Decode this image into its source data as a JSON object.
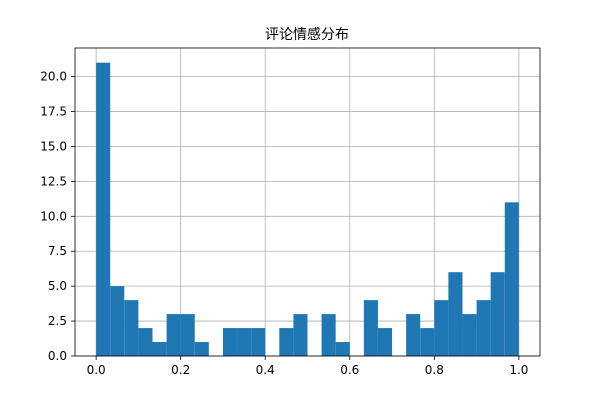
{
  "chart_data": {
    "type": "bar",
    "title": "评论情感分布",
    "xlabel": "",
    "ylabel": "",
    "xlim": [
      -0.05,
      1.05
    ],
    "ylim": [
      0,
      22.05
    ],
    "grid": true,
    "bar_color": "#1f77b4",
    "bin_width": 0.0333,
    "bins": [
      {
        "x0": 0.0,
        "count": 21
      },
      {
        "x0": 0.0333,
        "count": 5
      },
      {
        "x0": 0.0667,
        "count": 4
      },
      {
        "x0": 0.1,
        "count": 2
      },
      {
        "x0": 0.1333,
        "count": 1
      },
      {
        "x0": 0.1667,
        "count": 3
      },
      {
        "x0": 0.2,
        "count": 3
      },
      {
        "x0": 0.2333,
        "count": 1
      },
      {
        "x0": 0.2667,
        "count": 0
      },
      {
        "x0": 0.3,
        "count": 2
      },
      {
        "x0": 0.3333,
        "count": 2
      },
      {
        "x0": 0.3667,
        "count": 2
      },
      {
        "x0": 0.4,
        "count": 0
      },
      {
        "x0": 0.4333,
        "count": 2
      },
      {
        "x0": 0.4667,
        "count": 3
      },
      {
        "x0": 0.5,
        "count": 0
      },
      {
        "x0": 0.5333,
        "count": 3
      },
      {
        "x0": 0.5667,
        "count": 1
      },
      {
        "x0": 0.6,
        "count": 0
      },
      {
        "x0": 0.6333,
        "count": 4
      },
      {
        "x0": 0.6667,
        "count": 2
      },
      {
        "x0": 0.7,
        "count": 0
      },
      {
        "x0": 0.7333,
        "count": 3
      },
      {
        "x0": 0.7667,
        "count": 2
      },
      {
        "x0": 0.8,
        "count": 4
      },
      {
        "x0": 0.8333,
        "count": 6
      },
      {
        "x0": 0.8667,
        "count": 3
      },
      {
        "x0": 0.9,
        "count": 4
      },
      {
        "x0": 0.9333,
        "count": 6
      },
      {
        "x0": 0.9667,
        "count": 11
      }
    ],
    "x_ticks": [
      {
        "value": 0.0,
        "label": "0.0"
      },
      {
        "value": 0.2,
        "label": "0.2"
      },
      {
        "value": 0.4,
        "label": "0.4"
      },
      {
        "value": 0.6,
        "label": "0.6"
      },
      {
        "value": 0.8,
        "label": "0.8"
      },
      {
        "value": 1.0,
        "label": "1.0"
      }
    ],
    "y_ticks": [
      {
        "value": 0.0,
        "label": "0.0"
      },
      {
        "value": 2.5,
        "label": "2.5"
      },
      {
        "value": 5.0,
        "label": "5.0"
      },
      {
        "value": 7.5,
        "label": "7.5"
      },
      {
        "value": 10.0,
        "label": "10.0"
      },
      {
        "value": 12.5,
        "label": "12.5"
      },
      {
        "value": 15.0,
        "label": "15.0"
      },
      {
        "value": 17.5,
        "label": "17.5"
      },
      {
        "value": 20.0,
        "label": "20.0"
      }
    ]
  }
}
